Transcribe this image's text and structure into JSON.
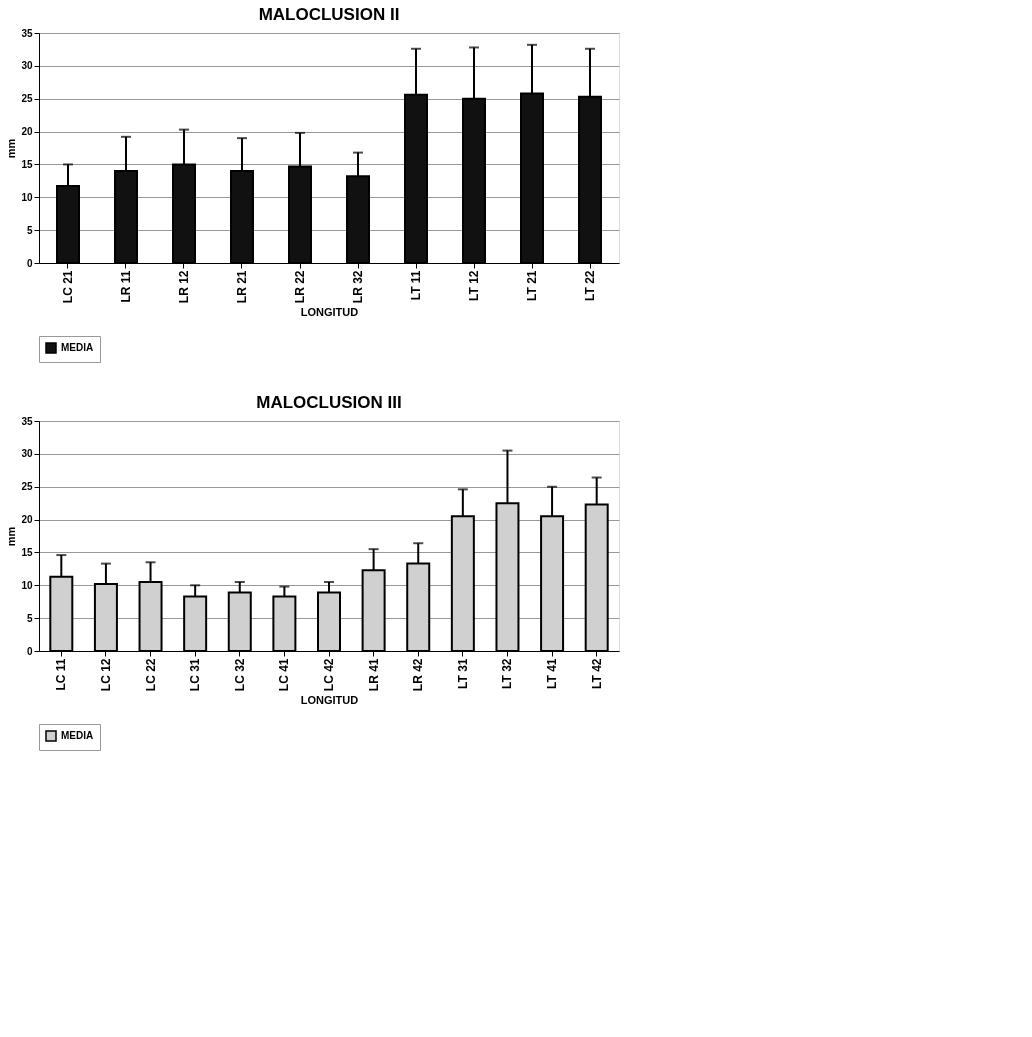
{
  "chart_data": [
    {
      "type": "bar",
      "title": "MALOCLUSION II",
      "xlabel": "LONGITUD",
      "ylabel": "mm",
      "categories": [
        "LC 21",
        "LR 11",
        "LR 12",
        "LR 21",
        "LR 22",
        "LR 32",
        "LT 11",
        "LT 12",
        "LT 21",
        "LT 22"
      ],
      "series": [
        {
          "name": "MEDIA",
          "color": "#111111",
          "values": [
            11.7,
            14,
            15,
            14,
            14.7,
            13.2,
            25.6,
            25,
            25.8,
            25.3
          ],
          "errors": [
            [
              11.7,
              15
            ],
            [
              14,
              19.2
            ],
            [
              15,
              20.3
            ],
            [
              14,
              19
            ],
            [
              14.7,
              19.8
            ],
            [
              13.2,
              16.8
            ],
            [
              25.6,
              32.6
            ],
            [
              25,
              32.8
            ],
            [
              25.8,
              33.2
            ],
            [
              25.3,
              32.6
            ]
          ]
        }
      ],
      "ylim": [
        0,
        35
      ],
      "yticks": [
        0,
        5,
        10,
        15,
        20,
        25,
        30,
        35
      ],
      "grid": "y",
      "legend": "bottom"
    },
    {
      "type": "bar",
      "title": "MALOCLUSION III",
      "xlabel": "LONGITUD",
      "ylabel": "mm",
      "categories": [
        "LC 11",
        "LC 12",
        "LC 22",
        "LC 31",
        "LC 32",
        "LC 41",
        "LC 42",
        "LR 41",
        "LR 42",
        "LT 31",
        "LT 32",
        "LT 41",
        "LT 42"
      ],
      "series": [
        {
          "name": "MEDIA",
          "color": "#d0d0d0",
          "values": [
            11.3,
            10.2,
            10.5,
            8.3,
            8.9,
            8.3,
            8.9,
            12.3,
            13.3,
            20.5,
            22.5,
            20.5,
            22.3
          ],
          "errors": [
            [
              11.3,
              14.6
            ],
            [
              10.2,
              13.3
            ],
            [
              10.5,
              13.5
            ],
            [
              8.3,
              10
            ],
            [
              8.9,
              10.5
            ],
            [
              8.3,
              9.8
            ],
            [
              8.9,
              10.5
            ],
            [
              12.3,
              15.5
            ],
            [
              13.3,
              16.4
            ],
            [
              20.5,
              24.6
            ],
            [
              22.5,
              30.5
            ],
            [
              20.5,
              25
            ],
            [
              22.3,
              26.4
            ]
          ]
        }
      ],
      "ylim": [
        0,
        35
      ],
      "yticks": [
        0,
        5,
        10,
        15,
        20,
        25,
        30,
        35
      ],
      "grid": "y",
      "legend": "bottom"
    }
  ]
}
